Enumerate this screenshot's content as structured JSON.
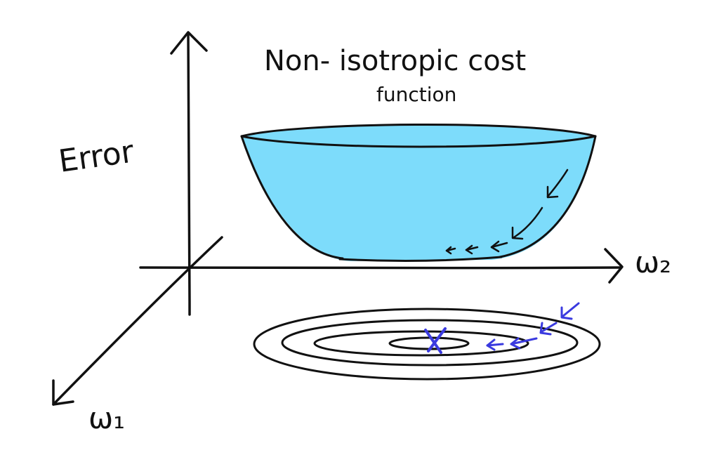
{
  "title": {
    "line1": "Non- isotropic cost",
    "line2": "function"
  },
  "axes": {
    "vertical_label": "Error",
    "horizontal_label": "ω₂",
    "depth_label": "ω₁"
  },
  "colors": {
    "bowl_fill": "#7ddcfb",
    "ink": "#111111",
    "gradient_path": "#3a3adf"
  },
  "diagram": {
    "surface_shape": "bowl",
    "contour_rings": 4,
    "minimum_marker": "x"
  }
}
